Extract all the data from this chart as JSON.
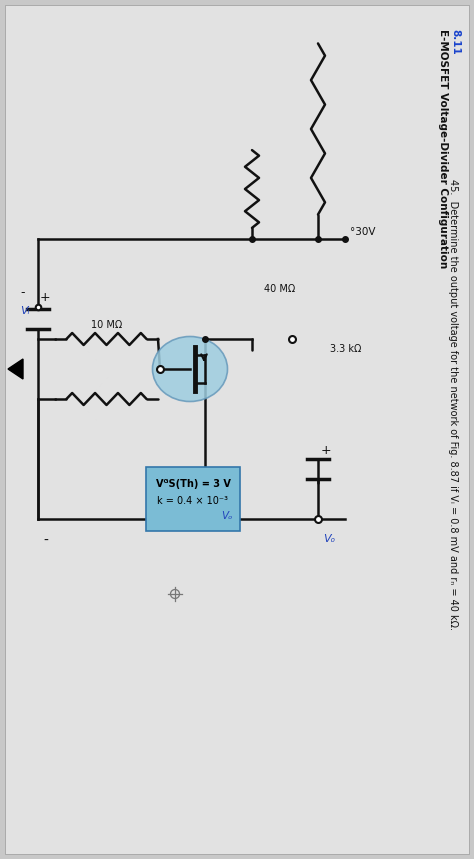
{
  "title_number": "8.11",
  "title_text": "E-MOSFET Voltage-Divider Configuration",
  "problem_number": "45.",
  "problem_text": "Determine the output voltage for the network of Fig. 8.87 if Vᵢ = 0.8 mV and rₙ = 40 kΩ.",
  "bg_color": "#c8c8c8",
  "page_color": "#e2e2e2",
  "vdd": "°30V",
  "r1": "40 MΩ",
  "r2": "3.3 kΩ",
  "r3": "10 MΩ",
  "mosfet_label1": "VᴳS(Th) = 3 V",
  "mosfet_label2": "k = 0.4 × 10⁻³",
  "vi_label": "Vᵢ",
  "vo_label": "Vₒ",
  "mosfet_box_color": "#7bbcd5",
  "mosfet_circle_color": "#9ecde0",
  "text_color": "#111111",
  "title_color": "#1a44cc",
  "wire_color": "#111111"
}
